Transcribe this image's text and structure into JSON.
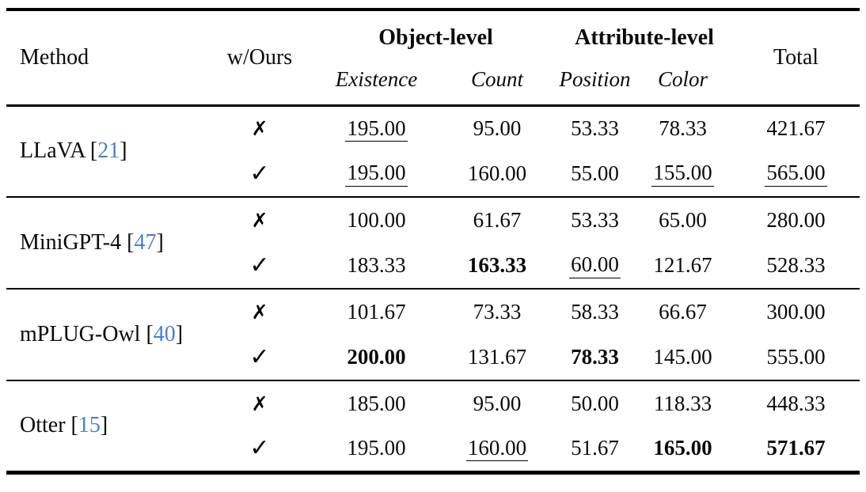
{
  "header": {
    "method": "Method",
    "w_ours": "w/Ours",
    "object_level": "Object-level",
    "attribute_level": "Attribute-level",
    "total": "Total",
    "sub": [
      "Existence",
      "Count",
      "Position",
      "Color"
    ]
  },
  "marks": {
    "without": "✗",
    "with": "✓"
  },
  "colors": {
    "citation_blue": "#4d7fc4",
    "text": "#0a0a0a"
  },
  "punct": {
    "open_bracket": "[",
    "close_bracket": "]"
  },
  "groups": [
    {
      "method": {
        "name": "LLaVA",
        "cite": "21"
      },
      "rows": [
        {
          "mark": "✗",
          "cells": [
            {
              "v": "195.00",
              "s": "u"
            },
            {
              "v": "95.00",
              "s": ""
            },
            {
              "v": "53.33",
              "s": ""
            },
            {
              "v": "78.33",
              "s": ""
            },
            {
              "v": "421.67",
              "s": ""
            }
          ]
        },
        {
          "mark": "✓",
          "cells": [
            {
              "v": "195.00",
              "s": "u"
            },
            {
              "v": "160.00",
              "s": ""
            },
            {
              "v": "55.00",
              "s": ""
            },
            {
              "v": "155.00",
              "s": "u"
            },
            {
              "v": "565.00",
              "s": "u"
            }
          ]
        }
      ]
    },
    {
      "method": {
        "name": "MiniGPT-4",
        "cite": "47"
      },
      "rows": [
        {
          "mark": "✗",
          "cells": [
            {
              "v": "100.00",
              "s": ""
            },
            {
              "v": "61.67",
              "s": ""
            },
            {
              "v": "53.33",
              "s": ""
            },
            {
              "v": "65.00",
              "s": ""
            },
            {
              "v": "280.00",
              "s": ""
            }
          ]
        },
        {
          "mark": "✓",
          "cells": [
            {
              "v": "183.33",
              "s": ""
            },
            {
              "v": "163.33",
              "s": "b"
            },
            {
              "v": "60.00",
              "s": "u"
            },
            {
              "v": "121.67",
              "s": ""
            },
            {
              "v": "528.33",
              "s": ""
            }
          ]
        }
      ]
    },
    {
      "method": {
        "name": "mPLUG-Owl",
        "cite": "40"
      },
      "rows": [
        {
          "mark": "✗",
          "cells": [
            {
              "v": "101.67",
              "s": ""
            },
            {
              "v": "73.33",
              "s": ""
            },
            {
              "v": "58.33",
              "s": ""
            },
            {
              "v": "66.67",
              "s": ""
            },
            {
              "v": "300.00",
              "s": ""
            }
          ]
        },
        {
          "mark": "✓",
          "cells": [
            {
              "v": "200.00",
              "s": "b"
            },
            {
              "v": "131.67",
              "s": ""
            },
            {
              "v": "78.33",
              "s": "b"
            },
            {
              "v": "145.00",
              "s": ""
            },
            {
              "v": "555.00",
              "s": ""
            }
          ]
        }
      ]
    },
    {
      "method": {
        "name": "Otter",
        "cite": "15"
      },
      "rows": [
        {
          "mark": "✗",
          "cells": [
            {
              "v": "185.00",
              "s": ""
            },
            {
              "v": "95.00",
              "s": ""
            },
            {
              "v": "50.00",
              "s": ""
            },
            {
              "v": "118.33",
              "s": ""
            },
            {
              "v": "448.33",
              "s": ""
            }
          ]
        },
        {
          "mark": "✓",
          "cells": [
            {
              "v": "195.00",
              "s": ""
            },
            {
              "v": "160.00",
              "s": "u"
            },
            {
              "v": "51.67",
              "s": ""
            },
            {
              "v": "165.00",
              "s": "b"
            },
            {
              "v": "571.67",
              "s": "b"
            }
          ]
        }
      ]
    }
  ]
}
